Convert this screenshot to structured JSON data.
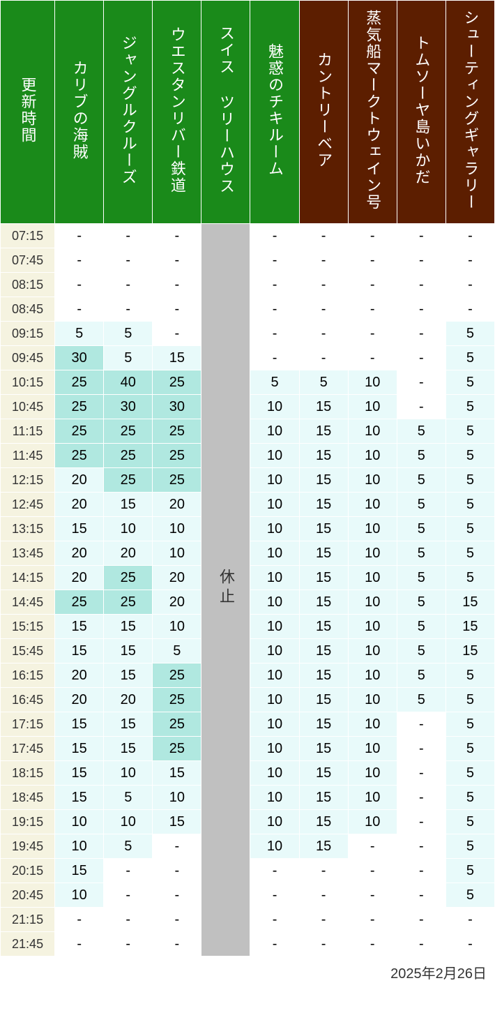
{
  "headers": {
    "time": "更新時間",
    "attractions": [
      {
        "label": "カリブの海賊",
        "bgcolor": "#1a8a1a"
      },
      {
        "label": "ジャングルクルーズ",
        "bgcolor": "#1a8a1a"
      },
      {
        "label": "ウエスタンリバー鉄道",
        "bgcolor": "#1a8a1a"
      },
      {
        "label": "スイス ツリーハウス",
        "bgcolor": "#1a8a1a"
      },
      {
        "label": "魅惑のチキルーム",
        "bgcolor": "#1a8a1a"
      },
      {
        "label": "カントリーベア",
        "bgcolor": "#5c1e00"
      },
      {
        "label": "蒸気船マークトウェイン号",
        "bgcolor": "#5c1e00"
      },
      {
        "label": "トムソーヤ島いかだ",
        "bgcolor": "#5c1e00"
      },
      {
        "label": "シューティングギャラリー",
        "bgcolor": "#5c1e00"
      }
    ],
    "time_header_bgcolor": "#1a8a1a"
  },
  "colors": {
    "time_cell": "#f5f3e0",
    "closed_cell": "#c0c0c0",
    "white": "#ffffff",
    "tier0": "#ffffff",
    "tier1": "#e8fafa",
    "tier2": "#b0e8e0"
  },
  "closed": {
    "column_index": 3,
    "label": "休止"
  },
  "times": [
    "07:15",
    "07:45",
    "08:15",
    "08:45",
    "09:15",
    "09:45",
    "10:15",
    "10:45",
    "11:15",
    "11:45",
    "12:15",
    "12:45",
    "13:15",
    "13:45",
    "14:15",
    "14:45",
    "15:15",
    "15:45",
    "16:15",
    "16:45",
    "17:15",
    "17:45",
    "18:15",
    "18:45",
    "19:15",
    "19:45",
    "20:15",
    "20:45",
    "21:15",
    "21:45"
  ],
  "rows": [
    [
      {
        "v": "-",
        "t": 0
      },
      {
        "v": "-",
        "t": 0
      },
      {
        "v": "-",
        "t": 0
      },
      null,
      {
        "v": "-",
        "t": 0
      },
      {
        "v": "-",
        "t": 0
      },
      {
        "v": "-",
        "t": 0
      },
      {
        "v": "-",
        "t": 0
      },
      {
        "v": "-",
        "t": 0
      }
    ],
    [
      {
        "v": "-",
        "t": 0
      },
      {
        "v": "-",
        "t": 0
      },
      {
        "v": "-",
        "t": 0
      },
      null,
      {
        "v": "-",
        "t": 0
      },
      {
        "v": "-",
        "t": 0
      },
      {
        "v": "-",
        "t": 0
      },
      {
        "v": "-",
        "t": 0
      },
      {
        "v": "-",
        "t": 0
      }
    ],
    [
      {
        "v": "-",
        "t": 0
      },
      {
        "v": "-",
        "t": 0
      },
      {
        "v": "-",
        "t": 0
      },
      null,
      {
        "v": "-",
        "t": 0
      },
      {
        "v": "-",
        "t": 0
      },
      {
        "v": "-",
        "t": 0
      },
      {
        "v": "-",
        "t": 0
      },
      {
        "v": "-",
        "t": 0
      }
    ],
    [
      {
        "v": "-",
        "t": 0
      },
      {
        "v": "-",
        "t": 0
      },
      {
        "v": "-",
        "t": 0
      },
      null,
      {
        "v": "-",
        "t": 0
      },
      {
        "v": "-",
        "t": 0
      },
      {
        "v": "-",
        "t": 0
      },
      {
        "v": "-",
        "t": 0
      },
      {
        "v": "-",
        "t": 0
      }
    ],
    [
      {
        "v": "5",
        "t": 1
      },
      {
        "v": "5",
        "t": 1
      },
      {
        "v": "-",
        "t": 0
      },
      null,
      {
        "v": "-",
        "t": 0
      },
      {
        "v": "-",
        "t": 0
      },
      {
        "v": "-",
        "t": 0
      },
      {
        "v": "-",
        "t": 0
      },
      {
        "v": "5",
        "t": 1
      }
    ],
    [
      {
        "v": "30",
        "t": 2
      },
      {
        "v": "5",
        "t": 1
      },
      {
        "v": "15",
        "t": 1
      },
      null,
      {
        "v": "-",
        "t": 0
      },
      {
        "v": "-",
        "t": 0
      },
      {
        "v": "-",
        "t": 0
      },
      {
        "v": "-",
        "t": 0
      },
      {
        "v": "5",
        "t": 1
      }
    ],
    [
      {
        "v": "25",
        "t": 2
      },
      {
        "v": "40",
        "t": 2
      },
      {
        "v": "25",
        "t": 2
      },
      null,
      {
        "v": "5",
        "t": 1
      },
      {
        "v": "5",
        "t": 1
      },
      {
        "v": "10",
        "t": 1
      },
      {
        "v": "-",
        "t": 0
      },
      {
        "v": "5",
        "t": 1
      }
    ],
    [
      {
        "v": "25",
        "t": 2
      },
      {
        "v": "30",
        "t": 2
      },
      {
        "v": "30",
        "t": 2
      },
      null,
      {
        "v": "10",
        "t": 1
      },
      {
        "v": "15",
        "t": 1
      },
      {
        "v": "10",
        "t": 1
      },
      {
        "v": "-",
        "t": 0
      },
      {
        "v": "5",
        "t": 1
      }
    ],
    [
      {
        "v": "25",
        "t": 2
      },
      {
        "v": "25",
        "t": 2
      },
      {
        "v": "25",
        "t": 2
      },
      null,
      {
        "v": "10",
        "t": 1
      },
      {
        "v": "15",
        "t": 1
      },
      {
        "v": "10",
        "t": 1
      },
      {
        "v": "5",
        "t": 1
      },
      {
        "v": "5",
        "t": 1
      }
    ],
    [
      {
        "v": "25",
        "t": 2
      },
      {
        "v": "25",
        "t": 2
      },
      {
        "v": "25",
        "t": 2
      },
      null,
      {
        "v": "10",
        "t": 1
      },
      {
        "v": "15",
        "t": 1
      },
      {
        "v": "10",
        "t": 1
      },
      {
        "v": "5",
        "t": 1
      },
      {
        "v": "5",
        "t": 1
      }
    ],
    [
      {
        "v": "20",
        "t": 1
      },
      {
        "v": "25",
        "t": 2
      },
      {
        "v": "25",
        "t": 2
      },
      null,
      {
        "v": "10",
        "t": 1
      },
      {
        "v": "15",
        "t": 1
      },
      {
        "v": "10",
        "t": 1
      },
      {
        "v": "5",
        "t": 1
      },
      {
        "v": "5",
        "t": 1
      }
    ],
    [
      {
        "v": "20",
        "t": 1
      },
      {
        "v": "15",
        "t": 1
      },
      {
        "v": "20",
        "t": 1
      },
      null,
      {
        "v": "10",
        "t": 1
      },
      {
        "v": "15",
        "t": 1
      },
      {
        "v": "10",
        "t": 1
      },
      {
        "v": "5",
        "t": 1
      },
      {
        "v": "5",
        "t": 1
      }
    ],
    [
      {
        "v": "15",
        "t": 1
      },
      {
        "v": "10",
        "t": 1
      },
      {
        "v": "10",
        "t": 1
      },
      null,
      {
        "v": "10",
        "t": 1
      },
      {
        "v": "15",
        "t": 1
      },
      {
        "v": "10",
        "t": 1
      },
      {
        "v": "5",
        "t": 1
      },
      {
        "v": "5",
        "t": 1
      }
    ],
    [
      {
        "v": "20",
        "t": 1
      },
      {
        "v": "20",
        "t": 1
      },
      {
        "v": "10",
        "t": 1
      },
      null,
      {
        "v": "10",
        "t": 1
      },
      {
        "v": "15",
        "t": 1
      },
      {
        "v": "10",
        "t": 1
      },
      {
        "v": "5",
        "t": 1
      },
      {
        "v": "5",
        "t": 1
      }
    ],
    [
      {
        "v": "20",
        "t": 1
      },
      {
        "v": "25",
        "t": 2
      },
      {
        "v": "20",
        "t": 1
      },
      null,
      {
        "v": "10",
        "t": 1
      },
      {
        "v": "15",
        "t": 1
      },
      {
        "v": "10",
        "t": 1
      },
      {
        "v": "5",
        "t": 1
      },
      {
        "v": "5",
        "t": 1
      }
    ],
    [
      {
        "v": "25",
        "t": 2
      },
      {
        "v": "25",
        "t": 2
      },
      {
        "v": "20",
        "t": 1
      },
      null,
      {
        "v": "10",
        "t": 1
      },
      {
        "v": "15",
        "t": 1
      },
      {
        "v": "10",
        "t": 1
      },
      {
        "v": "5",
        "t": 1
      },
      {
        "v": "15",
        "t": 1
      }
    ],
    [
      {
        "v": "15",
        "t": 1
      },
      {
        "v": "15",
        "t": 1
      },
      {
        "v": "10",
        "t": 1
      },
      null,
      {
        "v": "10",
        "t": 1
      },
      {
        "v": "15",
        "t": 1
      },
      {
        "v": "10",
        "t": 1
      },
      {
        "v": "5",
        "t": 1
      },
      {
        "v": "15",
        "t": 1
      }
    ],
    [
      {
        "v": "15",
        "t": 1
      },
      {
        "v": "15",
        "t": 1
      },
      {
        "v": "5",
        "t": 1
      },
      null,
      {
        "v": "10",
        "t": 1
      },
      {
        "v": "15",
        "t": 1
      },
      {
        "v": "10",
        "t": 1
      },
      {
        "v": "5",
        "t": 1
      },
      {
        "v": "15",
        "t": 1
      }
    ],
    [
      {
        "v": "20",
        "t": 1
      },
      {
        "v": "15",
        "t": 1
      },
      {
        "v": "25",
        "t": 2
      },
      null,
      {
        "v": "10",
        "t": 1
      },
      {
        "v": "15",
        "t": 1
      },
      {
        "v": "10",
        "t": 1
      },
      {
        "v": "5",
        "t": 1
      },
      {
        "v": "5",
        "t": 1
      }
    ],
    [
      {
        "v": "20",
        "t": 1
      },
      {
        "v": "20",
        "t": 1
      },
      {
        "v": "25",
        "t": 2
      },
      null,
      {
        "v": "10",
        "t": 1
      },
      {
        "v": "15",
        "t": 1
      },
      {
        "v": "10",
        "t": 1
      },
      {
        "v": "5",
        "t": 1
      },
      {
        "v": "5",
        "t": 1
      }
    ],
    [
      {
        "v": "15",
        "t": 1
      },
      {
        "v": "15",
        "t": 1
      },
      {
        "v": "25",
        "t": 2
      },
      null,
      {
        "v": "10",
        "t": 1
      },
      {
        "v": "15",
        "t": 1
      },
      {
        "v": "10",
        "t": 1
      },
      {
        "v": "-",
        "t": 0
      },
      {
        "v": "5",
        "t": 1
      }
    ],
    [
      {
        "v": "15",
        "t": 1
      },
      {
        "v": "15",
        "t": 1
      },
      {
        "v": "25",
        "t": 2
      },
      null,
      {
        "v": "10",
        "t": 1
      },
      {
        "v": "15",
        "t": 1
      },
      {
        "v": "10",
        "t": 1
      },
      {
        "v": "-",
        "t": 0
      },
      {
        "v": "5",
        "t": 1
      }
    ],
    [
      {
        "v": "15",
        "t": 1
      },
      {
        "v": "10",
        "t": 1
      },
      {
        "v": "15",
        "t": 1
      },
      null,
      {
        "v": "10",
        "t": 1
      },
      {
        "v": "15",
        "t": 1
      },
      {
        "v": "10",
        "t": 1
      },
      {
        "v": "-",
        "t": 0
      },
      {
        "v": "5",
        "t": 1
      }
    ],
    [
      {
        "v": "15",
        "t": 1
      },
      {
        "v": "5",
        "t": 1
      },
      {
        "v": "10",
        "t": 1
      },
      null,
      {
        "v": "10",
        "t": 1
      },
      {
        "v": "15",
        "t": 1
      },
      {
        "v": "10",
        "t": 1
      },
      {
        "v": "-",
        "t": 0
      },
      {
        "v": "5",
        "t": 1
      }
    ],
    [
      {
        "v": "10",
        "t": 1
      },
      {
        "v": "10",
        "t": 1
      },
      {
        "v": "15",
        "t": 1
      },
      null,
      {
        "v": "10",
        "t": 1
      },
      {
        "v": "15",
        "t": 1
      },
      {
        "v": "10",
        "t": 1
      },
      {
        "v": "-",
        "t": 0
      },
      {
        "v": "5",
        "t": 1
      }
    ],
    [
      {
        "v": "10",
        "t": 1
      },
      {
        "v": "5",
        "t": 1
      },
      {
        "v": "-",
        "t": 0
      },
      null,
      {
        "v": "10",
        "t": 1
      },
      {
        "v": "15",
        "t": 1
      },
      {
        "v": "-",
        "t": 0
      },
      {
        "v": "-",
        "t": 0
      },
      {
        "v": "5",
        "t": 1
      }
    ],
    [
      {
        "v": "15",
        "t": 1
      },
      {
        "v": "-",
        "t": 0
      },
      {
        "v": "-",
        "t": 0
      },
      null,
      {
        "v": "-",
        "t": 0
      },
      {
        "v": "-",
        "t": 0
      },
      {
        "v": "-",
        "t": 0
      },
      {
        "v": "-",
        "t": 0
      },
      {
        "v": "5",
        "t": 1
      }
    ],
    [
      {
        "v": "10",
        "t": 1
      },
      {
        "v": "-",
        "t": 0
      },
      {
        "v": "-",
        "t": 0
      },
      null,
      {
        "v": "-",
        "t": 0
      },
      {
        "v": "-",
        "t": 0
      },
      {
        "v": "-",
        "t": 0
      },
      {
        "v": "-",
        "t": 0
      },
      {
        "v": "5",
        "t": 1
      }
    ],
    [
      {
        "v": "-",
        "t": 0
      },
      {
        "v": "-",
        "t": 0
      },
      {
        "v": "-",
        "t": 0
      },
      null,
      {
        "v": "-",
        "t": 0
      },
      {
        "v": "-",
        "t": 0
      },
      {
        "v": "-",
        "t": 0
      },
      {
        "v": "-",
        "t": 0
      },
      {
        "v": "-",
        "t": 0
      }
    ],
    [
      {
        "v": "-",
        "t": 0
      },
      {
        "v": "-",
        "t": 0
      },
      {
        "v": "-",
        "t": 0
      },
      null,
      {
        "v": "-",
        "t": 0
      },
      {
        "v": "-",
        "t": 0
      },
      {
        "v": "-",
        "t": 0
      },
      {
        "v": "-",
        "t": 0
      },
      {
        "v": "-",
        "t": 0
      }
    ]
  ],
  "footer_date": "2025年2月26日"
}
